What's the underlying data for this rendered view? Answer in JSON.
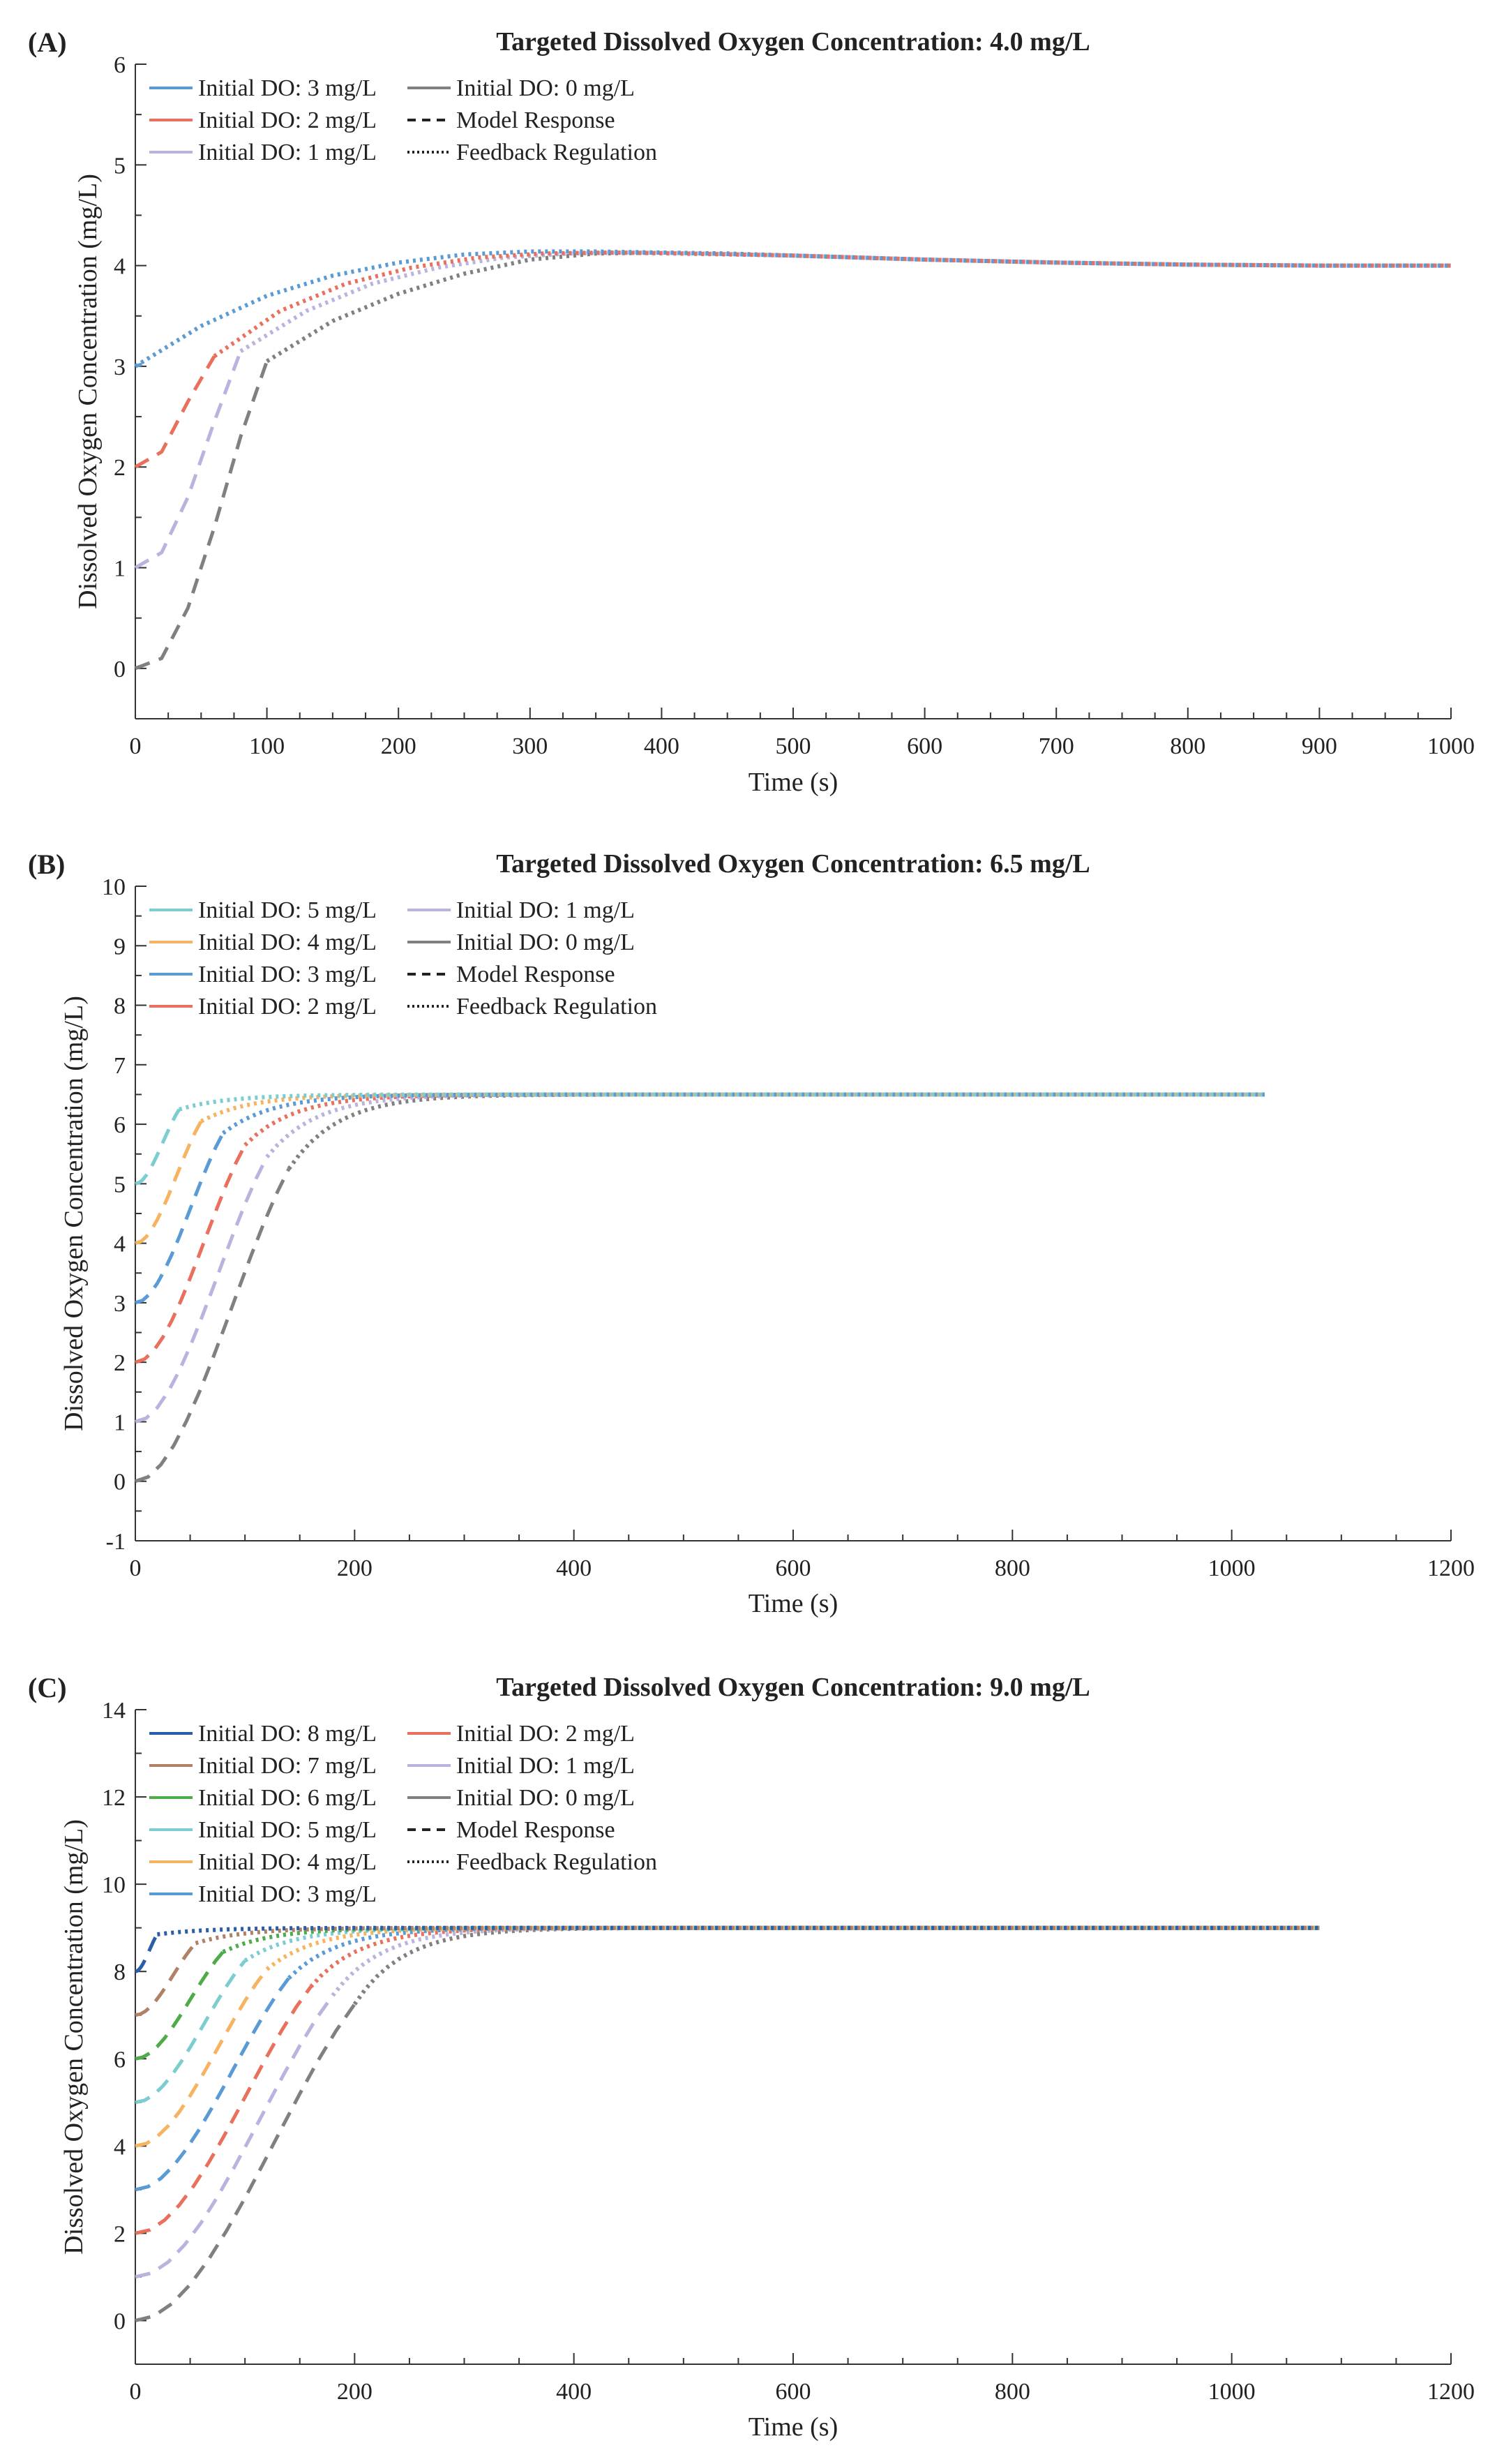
{
  "figure": {
    "colors": {
      "blue": "#5a9bd5",
      "red": "#e8705c",
      "lavender": "#b9b3dd",
      "gray": "#808080",
      "teal": "#7ccdd0",
      "orange": "#f6b361",
      "navy": "#2b5ea8",
      "brown": "#b08067",
      "green": "#4dac47"
    }
  },
  "chart_data": [
    {
      "panel_label": "(A)",
      "type": "line",
      "title": "Targeted Dissolved Oxygen Concentration: 4.0 mg/L",
      "xlabel": "Time (s)",
      "ylabel": "Dissolved Oxygen Concentration (mg/L)",
      "xlim": [
        0,
        1000
      ],
      "ylim": [
        -0.5,
        6
      ],
      "xticks": [
        0,
        100,
        200,
        300,
        400,
        500,
        600,
        700,
        800,
        900,
        1000
      ],
      "yticks": [
        0,
        1,
        2,
        3,
        4,
        5,
        6
      ],
      "target": 4.0,
      "end_time": 1000,
      "legend_position": "top-left",
      "legend": [
        {
          "label": "Initial DO: 3 mg/L",
          "color": "#5a9bd5",
          "style": "solid"
        },
        {
          "label": "Initial DO: 0 mg/L",
          "color": "#808080",
          "style": "solid"
        },
        {
          "label": "Initial DO: 2 mg/L",
          "color": "#e8705c",
          "style": "solid"
        },
        {
          "label": "Model Response",
          "color": "#222222",
          "style": "dashed"
        },
        {
          "label": "Initial DO: 1 mg/L",
          "color": "#b9b3dd",
          "style": "solid"
        },
        {
          "label": "Feedback Regulation",
          "color": "#222222",
          "style": "dotted"
        }
      ],
      "series": [
        {
          "name": "Initial DO: 0 mg/L",
          "color": "#808080",
          "initial": 0,
          "model": {
            "x": [
              0,
              20,
              40,
              60,
              80,
              100
            ],
            "y": [
              0,
              0.1,
              0.6,
              1.4,
              2.3,
              3.05
            ]
          },
          "feedback": {
            "x": [
              100,
              150,
              200,
              250,
              300,
              350,
              400,
              450,
              500,
              600,
              700,
              800,
              900,
              1000
            ],
            "y": [
              3.05,
              3.45,
              3.72,
              3.92,
              4.06,
              4.12,
              4.13,
              4.12,
              4.1,
              4.06,
              4.03,
              4.01,
              4.0,
              4.0
            ]
          }
        },
        {
          "name": "Initial DO: 1 mg/L",
          "color": "#b9b3dd",
          "initial": 1,
          "model": {
            "x": [
              0,
              20,
              40,
              60,
              80
            ],
            "y": [
              1.0,
              1.15,
              1.7,
              2.45,
              3.15
            ]
          },
          "feedback": {
            "x": [
              80,
              130,
              180,
              230,
              280,
              330,
              380,
              430,
              500,
              600,
              700,
              800,
              900,
              1000
            ],
            "y": [
              3.15,
              3.55,
              3.82,
              3.98,
              4.08,
              4.12,
              4.13,
              4.12,
              4.1,
              4.06,
              4.03,
              4.01,
              4.0,
              4.0
            ]
          }
        },
        {
          "name": "Initial DO: 2 mg/L",
          "color": "#e8705c",
          "initial": 2,
          "model": {
            "x": [
              0,
              20,
              40,
              60
            ],
            "y": [
              2.0,
              2.15,
              2.65,
              3.1
            ]
          },
          "feedback": {
            "x": [
              60,
              110,
              160,
              210,
              260,
              310,
              360,
              410,
              500,
              600,
              700,
              800,
              900,
              1000
            ],
            "y": [
              3.1,
              3.55,
              3.82,
              3.98,
              4.08,
              4.12,
              4.13,
              4.12,
              4.1,
              4.06,
              4.03,
              4.01,
              4.0,
              4.0
            ]
          }
        },
        {
          "name": "Initial DO: 3 mg/L",
          "color": "#5a9bd5",
          "initial": 3,
          "model": {
            "x": [
              0,
              5
            ],
            "y": [
              3.0,
              3.02
            ]
          },
          "feedback": {
            "x": [
              0,
              50,
              100,
              150,
              200,
              250,
              300,
              350,
              400,
              500,
              600,
              700,
              800,
              900,
              1000
            ],
            "y": [
              3.0,
              3.4,
              3.7,
              3.9,
              4.03,
              4.11,
              4.14,
              4.14,
              4.13,
              4.1,
              4.06,
              4.03,
              4.01,
              4.0,
              4.0
            ]
          }
        }
      ]
    },
    {
      "panel_label": "(B)",
      "type": "line",
      "title": "Targeted Dissolved Oxygen Concentration: 6.5 mg/L",
      "xlabel": "Time (s)",
      "ylabel": "Dissolved Oxygen Concentration (mg/L)",
      "xlim": [
        0,
        1200
      ],
      "ylim": [
        -1,
        10
      ],
      "xticks": [
        0,
        200,
        400,
        600,
        800,
        1000,
        1200
      ],
      "yticks": [
        -1,
        0,
        1,
        2,
        3,
        4,
        5,
        6,
        7,
        8,
        9,
        10
      ],
      "target": 6.5,
      "end_time": 1030,
      "legend_position": "top-left",
      "legend": [
        {
          "label": "Initial DO: 5 mg/L",
          "color": "#7ccdd0",
          "style": "solid"
        },
        {
          "label": "Initial DO: 1 mg/L",
          "color": "#b9b3dd",
          "style": "solid"
        },
        {
          "label": "Initial DO: 4 mg/L",
          "color": "#f6b361",
          "style": "solid"
        },
        {
          "label": "Initial DO: 0 mg/L",
          "color": "#808080",
          "style": "solid"
        },
        {
          "label": "Initial DO: 3 mg/L",
          "color": "#5a9bd5",
          "style": "solid"
        },
        {
          "label": "Model Response",
          "color": "#222222",
          "style": "dashed"
        },
        {
          "label": "Initial DO: 2 mg/L",
          "color": "#e8705c",
          "style": "solid"
        },
        {
          "label": "Feedback Regulation",
          "color": "#222222",
          "style": "dotted"
        }
      ],
      "series": [
        {
          "name": "Initial DO: 0 mg/L",
          "color": "#808080",
          "initial": 0,
          "switch_time": 140
        },
        {
          "name": "Initial DO: 1 mg/L",
          "color": "#b9b3dd",
          "initial": 1,
          "switch_time": 120
        },
        {
          "name": "Initial DO: 2 mg/L",
          "color": "#e8705c",
          "initial": 2,
          "switch_time": 100
        },
        {
          "name": "Initial DO: 3 mg/L",
          "color": "#5a9bd5",
          "initial": 3,
          "switch_time": 80
        },
        {
          "name": "Initial DO: 4 mg/L",
          "color": "#f6b361",
          "initial": 4,
          "switch_time": 60
        },
        {
          "name": "Initial DO: 5 mg/L",
          "color": "#7ccdd0",
          "initial": 5,
          "switch_time": 40
        }
      ]
    },
    {
      "panel_label": "(C)",
      "type": "line",
      "title": "Targeted Dissolved Oxygen Concentration: 9.0 mg/L",
      "xlabel": "Time (s)",
      "ylabel": "Dissolved Oxygen Concentration (mg/L)",
      "xlim": [
        0,
        1200
      ],
      "ylim": [
        -1,
        14
      ],
      "xticks": [
        0,
        200,
        400,
        600,
        800,
        1000,
        1200
      ],
      "yticks": [
        0,
        2,
        4,
        6,
        8,
        10,
        12,
        14
      ],
      "target": 9.0,
      "end_time": 1080,
      "legend_position": "top-left",
      "legend": [
        {
          "label": "Initial DO: 8 mg/L",
          "color": "#2b5ea8",
          "style": "solid"
        },
        {
          "label": "Initial DO: 2 mg/L",
          "color": "#e8705c",
          "style": "solid"
        },
        {
          "label": "Initial DO: 7 mg/L",
          "color": "#b08067",
          "style": "solid"
        },
        {
          "label": "Initial DO: 1 mg/L",
          "color": "#b9b3dd",
          "style": "solid"
        },
        {
          "label": "Initial DO: 6 mg/L",
          "color": "#4dac47",
          "style": "solid"
        },
        {
          "label": "Initial DO: 0 mg/L",
          "color": "#808080",
          "style": "solid"
        },
        {
          "label": "Initial DO: 5 mg/L",
          "color": "#7ccdd0",
          "style": "solid"
        },
        {
          "label": "Model Response",
          "color": "#222222",
          "style": "dashed"
        },
        {
          "label": "Initial DO: 4 mg/L",
          "color": "#f6b361",
          "style": "solid"
        },
        {
          "label": "Feedback Regulation",
          "color": "#222222",
          "style": "dotted"
        },
        {
          "label": "Initial DO: 3 mg/L",
          "color": "#5a9bd5",
          "style": "solid"
        }
      ],
      "series": [
        {
          "name": "Initial DO: 0 mg/L",
          "color": "#808080",
          "initial": 0,
          "switch_time": 200
        },
        {
          "name": "Initial DO: 1 mg/L",
          "color": "#b9b3dd",
          "initial": 1,
          "switch_time": 180
        },
        {
          "name": "Initial DO: 2 mg/L",
          "color": "#e8705c",
          "initial": 2,
          "switch_time": 160
        },
        {
          "name": "Initial DO: 3 mg/L",
          "color": "#5a9bd5",
          "initial": 3,
          "switch_time": 140
        },
        {
          "name": "Initial DO: 4 mg/L",
          "color": "#f6b361",
          "initial": 4,
          "switch_time": 120
        },
        {
          "name": "Initial DO: 5 mg/L",
          "color": "#7ccdd0",
          "initial": 5,
          "switch_time": 100
        },
        {
          "name": "Initial DO: 6 mg/L",
          "color": "#4dac47",
          "initial": 6,
          "switch_time": 80
        },
        {
          "name": "Initial DO: 7 mg/L",
          "color": "#b08067",
          "initial": 7,
          "switch_time": 55
        },
        {
          "name": "Initial DO: 8 mg/L",
          "color": "#2b5ea8",
          "initial": 8,
          "switch_time": 20
        }
      ]
    }
  ]
}
